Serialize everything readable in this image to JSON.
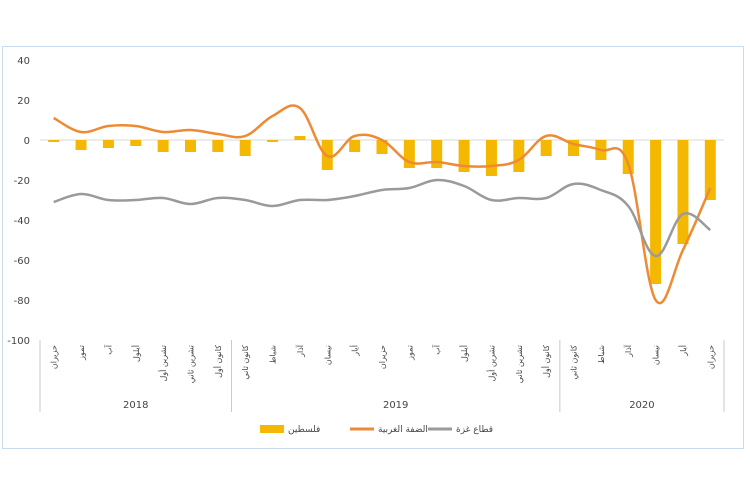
{
  "chart_data": {
    "type": "bar",
    "ylim": [
      -100,
      40
    ],
    "yticks": [
      40,
      20,
      0,
      -20,
      -40,
      -60,
      -80,
      -100
    ],
    "categories": [
      "حزيران",
      "تموز",
      "آب",
      "أيلول",
      "تشرين أول",
      "تشرين ثاني",
      "كانون أول",
      "كانون ثاني",
      "شباط",
      "آذار",
      "نيسان",
      "أيار",
      "حزيران",
      "تموز",
      "آب",
      "أيلول",
      "تشرين أول",
      "تشرين ثاني",
      "كانون أول",
      "كانون ثاني",
      "شباط",
      "آذار",
      "نيسان",
      "أيار",
      "حزيران"
    ],
    "category_labels_shown": [
      "حزيران",
      "تموز",
      "آب",
      "أيلول",
      "تشرين أول",
      "تشرين ثاني",
      "كانون أول",
      "كانون ثاني",
      "شباط",
      "آذار",
      "نيسان",
      "أيار",
      "حزيران",
      "تموز",
      "آب",
      "أيلول",
      "تشرين أول",
      "تشرين ثاني",
      "كانون أول",
      "كانون ثاني",
      "شباط",
      "آذار",
      "نيسان",
      "أيار",
      "حزيران"
    ],
    "years": [
      {
        "label": "2018",
        "start": 0,
        "end": 6
      },
      {
        "label": "2019",
        "start": 7,
        "end": 18
      },
      {
        "label": "2020",
        "start": 19,
        "end": 24
      }
    ],
    "series": [
      {
        "name": "فلسطين",
        "type": "bar",
        "color": "#f5b800",
        "values": [
          -1,
          -5,
          -4,
          -3,
          -6,
          -6,
          -6,
          -8,
          -1,
          2,
          -15,
          -6,
          -7,
          -14,
          -14,
          -16,
          -18,
          -16,
          -8,
          -8,
          -10,
          -17,
          -72,
          -52,
          -30
        ]
      },
      {
        "name": "الضفة الغربية",
        "type": "line",
        "color": "#ed8a35",
        "values": [
          11,
          4,
          7,
          7,
          4,
          5,
          3,
          2,
          12,
          16,
          -8,
          2,
          0,
          -11,
          -11,
          -13,
          -13,
          -10,
          2,
          -2,
          -5,
          -12,
          -80,
          -55,
          -24
        ]
      },
      {
        "name": "قطاع غزة",
        "type": "line",
        "color": "#9a9a9a",
        "values": [
          -31,
          -27,
          -30,
          -30,
          -29,
          -32,
          -29,
          -30,
          -33,
          -30,
          -30,
          -28,
          -25,
          -24,
          -20,
          -23,
          -30,
          -29,
          -29,
          -22,
          -25,
          -33,
          -58,
          -37,
          -45
        ]
      }
    ],
    "legend": {
      "position": "bottom",
      "items": [
        "فلسطين",
        "الضفة الغربية",
        "قطاع غزة"
      ]
    },
    "grid": false
  }
}
